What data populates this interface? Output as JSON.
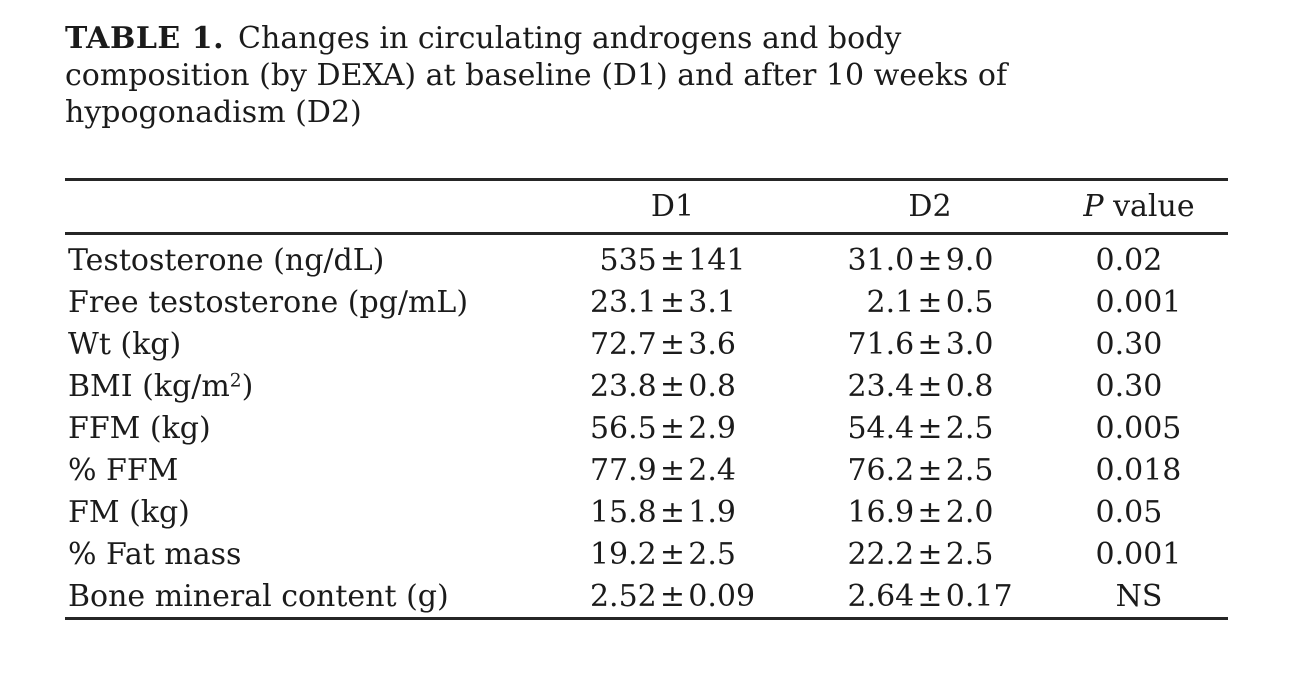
{
  "page": {
    "background": "#ffffff",
    "text_color": "#1b1b1b",
    "rule_color": "#262626"
  },
  "title": {
    "label": "TABLE 1.",
    "line1_rest": "Changes in circulating androgens and body",
    "line2": "composition (by DEXA) at baseline (D1) and after 10 weeks of",
    "line3": "hypogonadism (D2)"
  },
  "table": {
    "pm": "±",
    "header": {
      "col1": "D1",
      "col2": "D2",
      "p_italic": "P",
      "p_rest": " value"
    },
    "rows": [
      {
        "label": "Testosterone (ng/dL)",
        "label_sup": "",
        "label_post": "",
        "d1_mean": "535",
        "d1_err": "141",
        "d2_mean": "31.0",
        "d2_err": "9.0",
        "p": "0.02"
      },
      {
        "label": "Free testosterone (pg/mL)",
        "label_sup": "",
        "label_post": "",
        "d1_mean": "23.1",
        "d1_err": "3.1",
        "d2_mean": "2.1",
        "d2_err": "0.5",
        "p": "0.001"
      },
      {
        "label": "Wt (kg)",
        "label_sup": "",
        "label_post": "",
        "d1_mean": "72.7",
        "d1_err": "3.6",
        "d2_mean": "71.6",
        "d2_err": "3.0",
        "p": "0.30"
      },
      {
        "label": "BMI (kg/m",
        "label_sup": "2",
        "label_post": ")",
        "d1_mean": "23.8",
        "d1_err": "0.8",
        "d2_mean": "23.4",
        "d2_err": "0.8",
        "p": "0.30"
      },
      {
        "label": "FFM (kg)",
        "label_sup": "",
        "label_post": "",
        "d1_mean": "56.5",
        "d1_err": "2.9",
        "d2_mean": "54.4",
        "d2_err": "2.5",
        "p": "0.005"
      },
      {
        "label": "% FFM",
        "label_sup": "",
        "label_post": "",
        "d1_mean": "77.9",
        "d1_err": "2.4",
        "d2_mean": "76.2",
        "d2_err": "2.5",
        "p": "0.018"
      },
      {
        "label": "FM (kg)",
        "label_sup": "",
        "label_post": "",
        "d1_mean": "15.8",
        "d1_err": "1.9",
        "d2_mean": "16.9",
        "d2_err": "2.0",
        "p": "0.05"
      },
      {
        "label": "% Fat mass",
        "label_sup": "",
        "label_post": "",
        "d1_mean": "19.2",
        "d1_err": "2.5",
        "d2_mean": "22.2",
        "d2_err": "2.5",
        "p": "0.001"
      },
      {
        "label": "Bone mineral content (g)",
        "label_sup": "",
        "label_post": "",
        "d1_mean": "2.52",
        "d1_err": "0.09",
        "d2_mean": "2.64",
        "d2_err": "0.17",
        "p": "NS"
      }
    ]
  }
}
